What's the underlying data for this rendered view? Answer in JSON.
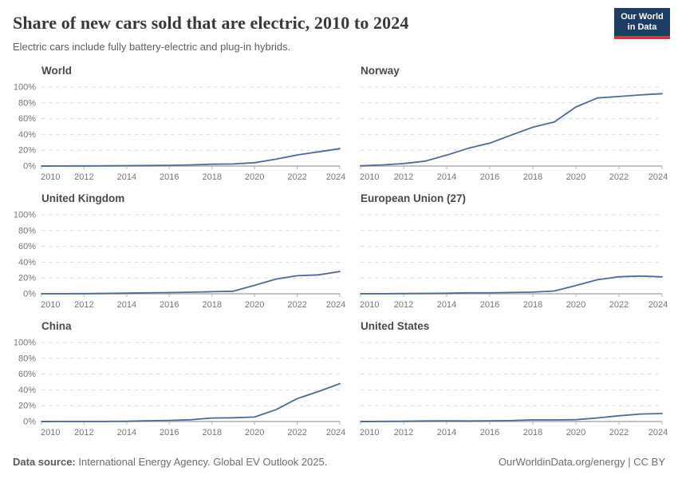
{
  "header": {
    "title": "Share of new cars sold that are electric, 2010 to 2024",
    "subtitle": "Electric cars include fully battery-electric and plug-in hybrids."
  },
  "logo": {
    "line1": "Our World",
    "line2": "in Data"
  },
  "footer": {
    "source_label": "Data source:",
    "source_text": " International Energy Agency. Global EV Outlook 2025.",
    "right_text": "OurWorldinData.org/energy | CC BY"
  },
  "style": {
    "line_color": "#4C6A9C",
    "grid_color": "#dcdcdc",
    "axis_color": "#c2c2c2",
    "tick_color": "#b3b3b3",
    "label_color": "#757575",
    "logo_bg": "#1d3d63",
    "logo_accent": "#cc3b3c"
  },
  "chart_data": [
    {
      "type": "line",
      "title": "World",
      "unit": "%",
      "x": [
        2010,
        2011,
        2012,
        2013,
        2014,
        2015,
        2016,
        2017,
        2018,
        2019,
        2020,
        2021,
        2022,
        2023,
        2024
      ],
      "values": [
        0.01,
        0.1,
        0.2,
        0.35,
        0.5,
        0.7,
        0.9,
        1.4,
        2.3,
        2.6,
        4.2,
        8.7,
        14.0,
        18.0,
        22.0
      ],
      "ylim": [
        0,
        100
      ],
      "yticks": [
        0,
        20,
        40,
        60,
        80,
        100
      ],
      "xticks": [
        2010,
        2012,
        2014,
        2016,
        2018,
        2020,
        2022,
        2024
      ],
      "grid": true,
      "y_axis_labels": true
    },
    {
      "type": "line",
      "title": "Norway",
      "unit": "%",
      "x": [
        2010,
        2011,
        2012,
        2013,
        2014,
        2015,
        2016,
        2017,
        2018,
        2019,
        2020,
        2021,
        2022,
        2023,
        2024
      ],
      "values": [
        0.3,
        1.4,
        3.1,
        6.2,
        13.8,
        22.4,
        29.0,
        39.2,
        49.1,
        55.9,
        74.7,
        86.2,
        88.0,
        90.0,
        91.6
      ],
      "ylim": [
        0,
        100
      ],
      "yticks": [
        0,
        20,
        40,
        60,
        80,
        100
      ],
      "xticks": [
        2010,
        2012,
        2014,
        2016,
        2018,
        2020,
        2022,
        2024
      ],
      "grid": true,
      "y_axis_labels": false
    },
    {
      "type": "line",
      "title": "United Kingdom",
      "unit": "%",
      "x": [
        2010,
        2011,
        2012,
        2013,
        2014,
        2015,
        2016,
        2017,
        2018,
        2019,
        2020,
        2021,
        2022,
        2023,
        2024
      ],
      "values": [
        0.1,
        0.1,
        0.2,
        0.5,
        0.8,
        1.2,
        1.5,
        2.0,
        2.6,
        3.2,
        10.7,
        18.6,
        22.8,
        23.9,
        28.2
      ],
      "ylim": [
        0,
        100
      ],
      "yticks": [
        0,
        20,
        40,
        60,
        80,
        100
      ],
      "xticks": [
        2010,
        2012,
        2014,
        2016,
        2018,
        2020,
        2022,
        2024
      ],
      "grid": true,
      "y_axis_labels": true
    },
    {
      "type": "line",
      "title": "European Union (27)",
      "unit": "%",
      "x": [
        2010,
        2011,
        2012,
        2013,
        2014,
        2015,
        2016,
        2017,
        2018,
        2019,
        2020,
        2021,
        2022,
        2023,
        2024
      ],
      "values": [
        0.1,
        0.1,
        0.3,
        0.5,
        0.7,
        1.2,
        1.2,
        1.6,
        2.1,
        3.5,
        10.5,
        17.8,
        21.5,
        22.4,
        21.4
      ],
      "ylim": [
        0,
        100
      ],
      "yticks": [
        0,
        20,
        40,
        60,
        80,
        100
      ],
      "xticks": [
        2010,
        2012,
        2014,
        2016,
        2018,
        2020,
        2022,
        2024
      ],
      "grid": true,
      "y_axis_labels": false
    },
    {
      "type": "line",
      "title": "China",
      "unit": "%",
      "x": [
        2010,
        2011,
        2012,
        2013,
        2014,
        2015,
        2016,
        2017,
        2018,
        2019,
        2020,
        2021,
        2022,
        2023,
        2024
      ],
      "values": [
        0.01,
        0.1,
        0.1,
        0.1,
        0.4,
        1.0,
        1.4,
        2.2,
        4.4,
        4.7,
        5.7,
        15.0,
        29.0,
        38.0,
        47.9
      ],
      "ylim": [
        0,
        100
      ],
      "yticks": [
        0,
        20,
        40,
        60,
        80,
        100
      ],
      "xticks": [
        2010,
        2012,
        2014,
        2016,
        2018,
        2020,
        2022,
        2024
      ],
      "grid": true,
      "y_axis_labels": true
    },
    {
      "type": "line",
      "title": "United States",
      "unit": "%",
      "x": [
        2010,
        2011,
        2012,
        2013,
        2014,
        2015,
        2016,
        2017,
        2018,
        2019,
        2020,
        2021,
        2022,
        2023,
        2024
      ],
      "values": [
        0.01,
        0.2,
        0.4,
        0.7,
        0.8,
        0.7,
        0.9,
        1.2,
        2.1,
        2.0,
        2.3,
        4.5,
        7.3,
        9.5,
        10.1
      ],
      "ylim": [
        0,
        100
      ],
      "yticks": [
        0,
        20,
        40,
        60,
        80,
        100
      ],
      "xticks": [
        2010,
        2012,
        2014,
        2016,
        2018,
        2020,
        2022,
        2024
      ],
      "grid": true,
      "y_axis_labels": false
    }
  ]
}
